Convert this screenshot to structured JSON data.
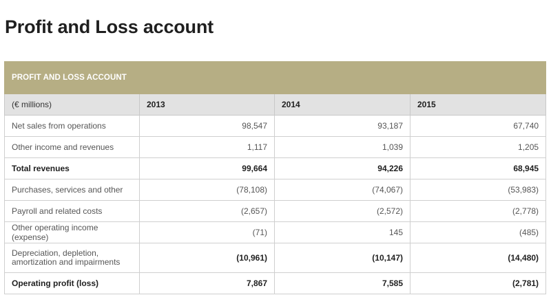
{
  "page": {
    "title": "Profit and Loss account"
  },
  "table": {
    "banner": "PROFIT AND LOSS ACCOUNT",
    "unit_label": "(€ millions)",
    "years": [
      "2013",
      "2014",
      "2015"
    ],
    "rows": [
      {
        "label": "Net sales from operations",
        "values": [
          "98,547",
          "93,187",
          "67,740"
        ]
      },
      {
        "label": "Other income and revenues",
        "values": [
          "1,117",
          "1,039",
          "1,205"
        ]
      },
      {
        "label": "Total revenues",
        "values": [
          "99,664",
          "94,226",
          "68,945"
        ]
      },
      {
        "label": "Purchases, services and other",
        "values": [
          "(78,108)",
          "(74,067)",
          "(53,983)"
        ]
      },
      {
        "label": "Payroll and related costs",
        "values": [
          "(2,657)",
          "(2,572)",
          "(2,778)"
        ]
      },
      {
        "label": "Other operating income (expense)",
        "values": [
          "(71)",
          "145",
          "(485)"
        ]
      },
      {
        "label": "Depreciation, depletion, amortization and impairments",
        "values": [
          "(10,961)",
          "(10,147)",
          "(14,480)"
        ]
      },
      {
        "label": "Operating profit (loss)",
        "values": [
          "7,867",
          "7,585",
          "(2,781)"
        ]
      }
    ]
  },
  "colors": {
    "banner": "#b6ae84",
    "header": "#e2e2e2"
  }
}
